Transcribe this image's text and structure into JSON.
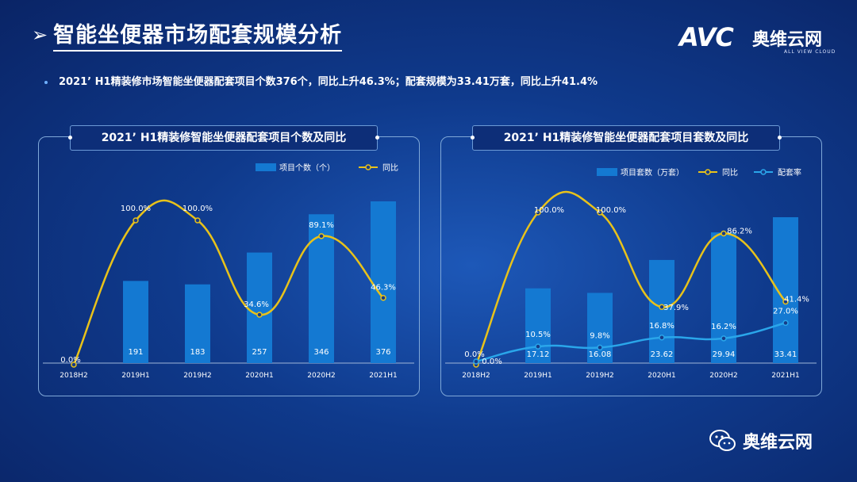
{
  "header": {
    "arrow": "➢",
    "title": "智能坐便器市场配套规模分析",
    "logo_main": "AVC",
    "logo_cn": "奥维云网",
    "logo_en": "ALL VIEW CLOUD"
  },
  "summary": "2021’ H1精装修市场智能坐便器配套项目个数376个，同比上升46.3%；配套规模为33.41万套，同比上升41.4%",
  "footer": {
    "wechat_label": "奥维云网"
  },
  "colors": {
    "bar": "#1479d2",
    "yoy_line": "#e8c21a",
    "rate_line": "#2aa6ea"
  },
  "chart_data": [
    {
      "type": "bar",
      "title": "2021’ H1精装修智能坐便器配套项目个数及同比",
      "categories": [
        "2018H2",
        "2019H1",
        "2019H2",
        "2020H1",
        "2020H2",
        "2021H1"
      ],
      "series": [
        {
          "name": "项目个数（个）",
          "type": "bar",
          "values": [
            0,
            191,
            183,
            257,
            346,
            376
          ],
          "labels": [
            "",
            "191",
            "183",
            "257",
            "346",
            "376"
          ]
        },
        {
          "name": "同比",
          "type": "line",
          "values": [
            0.0,
            100.0,
            100.0,
            34.6,
            89.1,
            46.3
          ],
          "labels": [
            "0.0%",
            "100.0%",
            "100.0%",
            "34.6%",
            "89.1%",
            "46.3%"
          ]
        }
      ],
      "legend": "top-right"
    },
    {
      "type": "bar",
      "title": "2021’ H1精装修智能坐便器配套项目套数及同比",
      "categories": [
        "2018H2",
        "2019H1",
        "2019H2",
        "2020H1",
        "2020H2",
        "2021H1"
      ],
      "series": [
        {
          "name": "项目套数（万套）",
          "type": "bar",
          "values": [
            0,
            17.12,
            16.08,
            23.62,
            29.94,
            33.41
          ],
          "labels": [
            "",
            "17.12",
            "16.08",
            "23.62",
            "29.94",
            "33.41"
          ]
        },
        {
          "name": "同比",
          "type": "line",
          "values": [
            0.0,
            100.0,
            100.0,
            37.9,
            86.2,
            41.4
          ],
          "labels": [
            "0.0%",
            "100.0%",
            "100.0%",
            "37.9%",
            "86.2%",
            "41.4%"
          ]
        },
        {
          "name": "配套率",
          "type": "line",
          "values": [
            0.0,
            10.5,
            9.8,
            16.8,
            16.2,
            27.0
          ],
          "labels": [
            "0.0%",
            "10.5%",
            "9.8%",
            "16.8%",
            "16.2%",
            "27.0%"
          ]
        }
      ],
      "legend": "top-right"
    }
  ]
}
